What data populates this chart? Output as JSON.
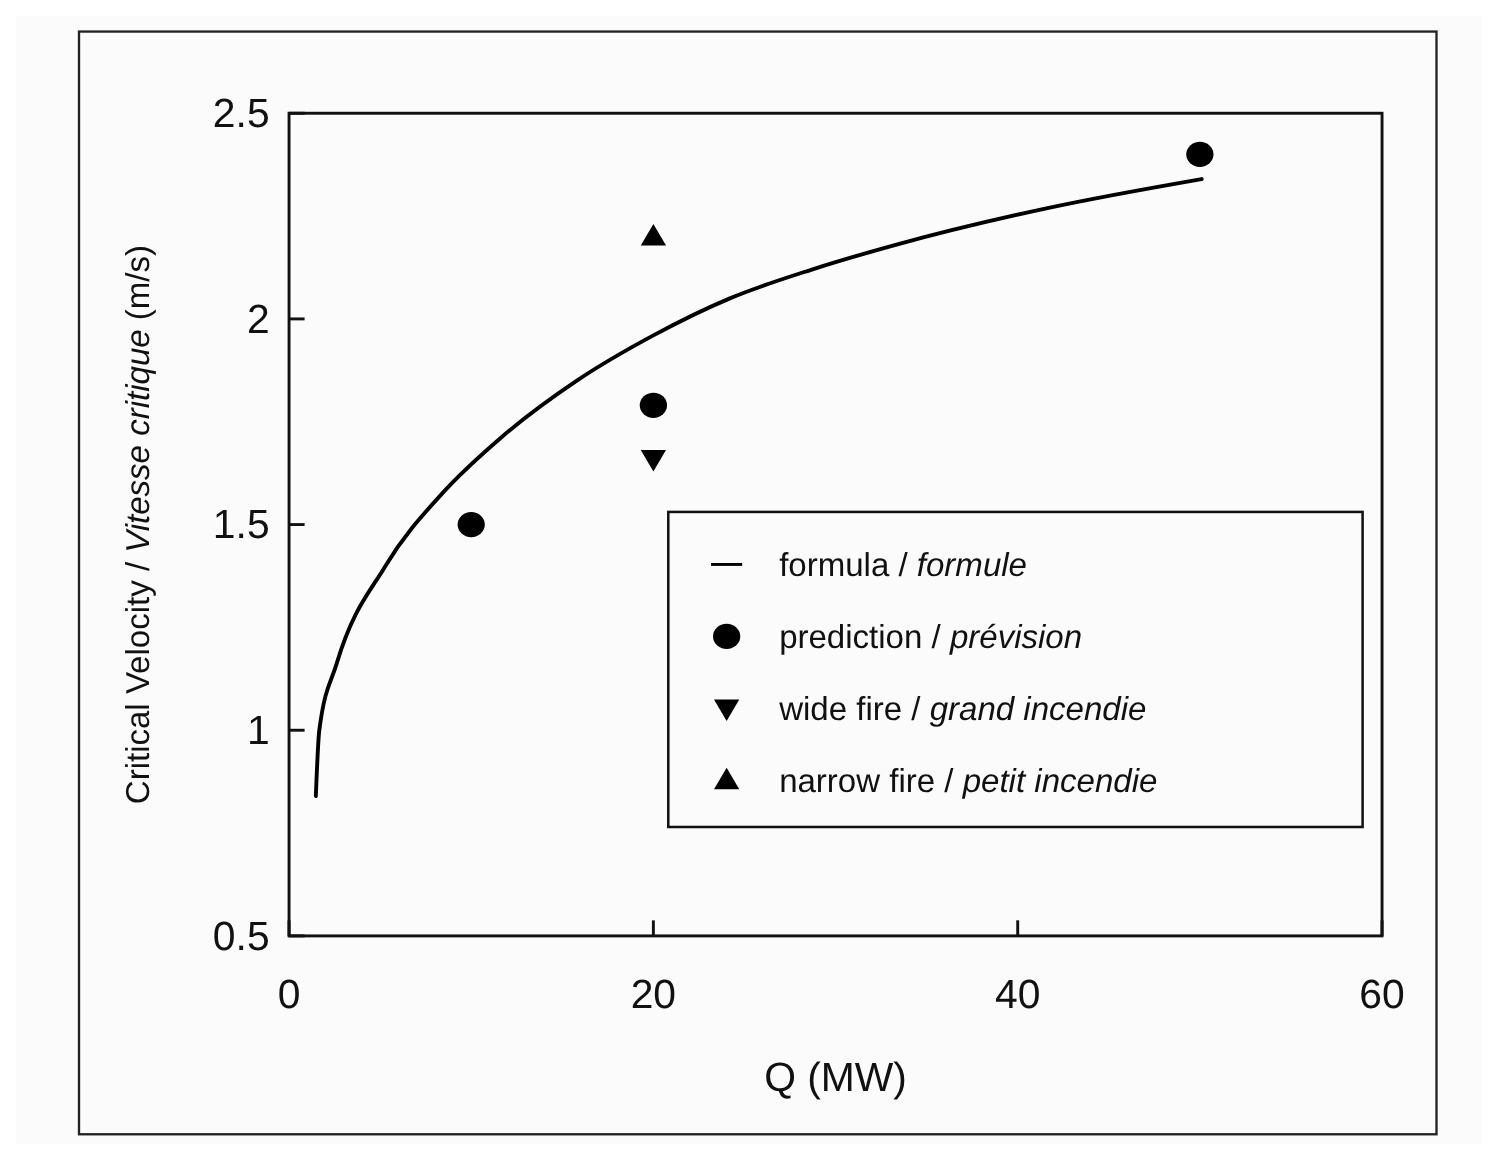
{
  "chart_data": {
    "type": "scatter",
    "xlabel": "Q (MW)",
    "ylabel": "Critical Velocity / Vitesse critique (m/s)",
    "xlim": [
      0,
      60
    ],
    "xticks": [
      0,
      20,
      40,
      60
    ],
    "ylim": [
      0.5,
      2.5
    ],
    "yticks": [
      0.5,
      1,
      1.5,
      2,
      2.5
    ],
    "grid": false,
    "legend": "bottom right",
    "series": [
      {
        "name": "formula / formule",
        "type": "line",
        "marker": "none",
        "line_style": "solid",
        "color": "#000000",
        "x": [
          1.47,
          1.66,
          2.6,
          5.3,
          8.5,
          11.6,
          15.8,
          20,
          24.2,
          28.7,
          33.3,
          41.7,
          50.1
        ],
        "values": [
          0.84,
          1.0,
          1.16,
          1.4,
          1.58,
          1.71,
          1.85,
          1.96,
          2.05,
          2.12,
          2.18,
          2.27,
          2.34
        ]
      },
      {
        "name": "prediction / prévision",
        "marker": "circle",
        "color": "#000000",
        "x": [
          10,
          20,
          50
        ],
        "values": [
          1.5,
          1.79,
          2.4
        ]
      },
      {
        "name": "wide fire / grand incendie",
        "marker": "triangle-down",
        "color": "#000000",
        "x": [
          20
        ],
        "values": [
          1.66
        ]
      },
      {
        "name": "narrow fire / petit incendie",
        "marker": "triangle",
        "color": "#000000",
        "x": [
          20
        ],
        "values": [
          2.2
        ]
      }
    ]
  }
}
